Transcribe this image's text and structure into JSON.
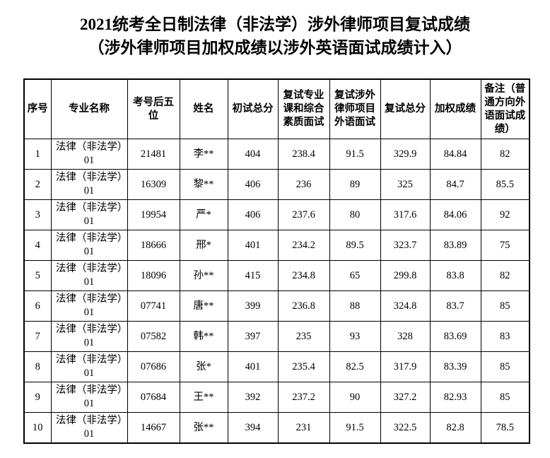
{
  "page": {
    "title_line1": "2021统考全日制法律（非法学）涉外律师项目复试成绩",
    "title_line2": "（涉外律师项目加权成绩以涉外英语面试成绩计入）"
  },
  "colors": {
    "background": "#ffffff",
    "text": "#000000",
    "border": "#000000"
  },
  "table": {
    "headers": [
      "序号",
      "专业名称",
      "考号后五位",
      "姓名",
      "初试总分",
      "复试专业课和综合素质面试",
      "复试涉外律师项目外语面试",
      "复试总分",
      "加权成绩",
      "备注（普通方向外语面试成绩）"
    ],
    "rows": [
      [
        "1",
        "法律（非法学）01",
        "21481",
        "李**",
        "404",
        "238.4",
        "91.5",
        "329.9",
        "84.84",
        "82"
      ],
      [
        "2",
        "法律（非法学）01",
        "16309",
        "黎**",
        "406",
        "236",
        "89",
        "325",
        "84.7",
        "85.5"
      ],
      [
        "3",
        "法律（非法学）01",
        "19954",
        "严*",
        "406",
        "237.6",
        "80",
        "317.6",
        "84.06",
        "92"
      ],
      [
        "4",
        "法律（非法学）01",
        "18666",
        "邢*",
        "401",
        "234.2",
        "89.5",
        "323.7",
        "83.89",
        "75"
      ],
      [
        "5",
        "法律（非法学）01",
        "18096",
        "孙**",
        "415",
        "234.8",
        "65",
        "299.8",
        "83.8",
        "82"
      ],
      [
        "6",
        "法律（非法学）01",
        "07741",
        "唐**",
        "399",
        "236.8",
        "88",
        "324.8",
        "83.7",
        "85"
      ],
      [
        "7",
        "法律（非法学）01",
        "07582",
        "韩**",
        "397",
        "235",
        "93",
        "328",
        "83.69",
        "83"
      ],
      [
        "8",
        "法律（非法学）01",
        "07686",
        "张*",
        "401",
        "235.4",
        "82.5",
        "317.9",
        "83.39",
        "85"
      ],
      [
        "9",
        "法律（非法学）01",
        "07684",
        "王**",
        "392",
        "237.2",
        "90",
        "327.2",
        "82.93",
        "85"
      ],
      [
        "10",
        "法律（非法学）01",
        "14667",
        "张**",
        "394",
        "231",
        "91.5",
        "322.5",
        "82.8",
        "78.5"
      ]
    ]
  }
}
